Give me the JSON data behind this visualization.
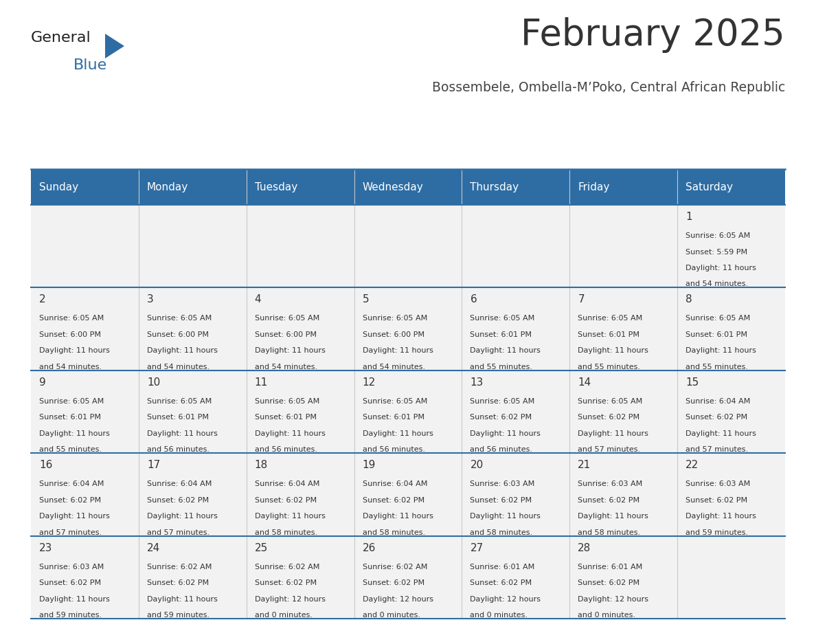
{
  "title": "February 2025",
  "subtitle": "Bossembele, Ombella-M’Poko, Central African Republic",
  "days_of_week": [
    "Sunday",
    "Monday",
    "Tuesday",
    "Wednesday",
    "Thursday",
    "Friday",
    "Saturday"
  ],
  "header_bg": "#2E6DA4",
  "header_text": "#FFFFFF",
  "cell_bg": "#F2F2F2",
  "line_color": "#2E6DA4",
  "title_color": "#333333",
  "subtitle_color": "#444444",
  "text_color": "#333333",
  "calendar_data": [
    [
      null,
      null,
      null,
      null,
      null,
      null,
      {
        "day": "1",
        "sunrise": "6:05 AM",
        "sunset": "5:59 PM",
        "daylight1": "Daylight: 11 hours",
        "daylight2": "and 54 minutes."
      }
    ],
    [
      {
        "day": "2",
        "sunrise": "6:05 AM",
        "sunset": "6:00 PM",
        "daylight1": "Daylight: 11 hours",
        "daylight2": "and 54 minutes."
      },
      {
        "day": "3",
        "sunrise": "6:05 AM",
        "sunset": "6:00 PM",
        "daylight1": "Daylight: 11 hours",
        "daylight2": "and 54 minutes."
      },
      {
        "day": "4",
        "sunrise": "6:05 AM",
        "sunset": "6:00 PM",
        "daylight1": "Daylight: 11 hours",
        "daylight2": "and 54 minutes."
      },
      {
        "day": "5",
        "sunrise": "6:05 AM",
        "sunset": "6:00 PM",
        "daylight1": "Daylight: 11 hours",
        "daylight2": "and 54 minutes."
      },
      {
        "day": "6",
        "sunrise": "6:05 AM",
        "sunset": "6:01 PM",
        "daylight1": "Daylight: 11 hours",
        "daylight2": "and 55 minutes."
      },
      {
        "day": "7",
        "sunrise": "6:05 AM",
        "sunset": "6:01 PM",
        "daylight1": "Daylight: 11 hours",
        "daylight2": "and 55 minutes."
      },
      {
        "day": "8",
        "sunrise": "6:05 AM",
        "sunset": "6:01 PM",
        "daylight1": "Daylight: 11 hours",
        "daylight2": "and 55 minutes."
      }
    ],
    [
      {
        "day": "9",
        "sunrise": "6:05 AM",
        "sunset": "6:01 PM",
        "daylight1": "Daylight: 11 hours",
        "daylight2": "and 55 minutes."
      },
      {
        "day": "10",
        "sunrise": "6:05 AM",
        "sunset": "6:01 PM",
        "daylight1": "Daylight: 11 hours",
        "daylight2": "and 56 minutes."
      },
      {
        "day": "11",
        "sunrise": "6:05 AM",
        "sunset": "6:01 PM",
        "daylight1": "Daylight: 11 hours",
        "daylight2": "and 56 minutes."
      },
      {
        "day": "12",
        "sunrise": "6:05 AM",
        "sunset": "6:01 PM",
        "daylight1": "Daylight: 11 hours",
        "daylight2": "and 56 minutes."
      },
      {
        "day": "13",
        "sunrise": "6:05 AM",
        "sunset": "6:02 PM",
        "daylight1": "Daylight: 11 hours",
        "daylight2": "and 56 minutes."
      },
      {
        "day": "14",
        "sunrise": "6:05 AM",
        "sunset": "6:02 PM",
        "daylight1": "Daylight: 11 hours",
        "daylight2": "and 57 minutes."
      },
      {
        "day": "15",
        "sunrise": "6:04 AM",
        "sunset": "6:02 PM",
        "daylight1": "Daylight: 11 hours",
        "daylight2": "and 57 minutes."
      }
    ],
    [
      {
        "day": "16",
        "sunrise": "6:04 AM",
        "sunset": "6:02 PM",
        "daylight1": "Daylight: 11 hours",
        "daylight2": "and 57 minutes."
      },
      {
        "day": "17",
        "sunrise": "6:04 AM",
        "sunset": "6:02 PM",
        "daylight1": "Daylight: 11 hours",
        "daylight2": "and 57 minutes."
      },
      {
        "day": "18",
        "sunrise": "6:04 AM",
        "sunset": "6:02 PM",
        "daylight1": "Daylight: 11 hours",
        "daylight2": "and 58 minutes."
      },
      {
        "day": "19",
        "sunrise": "6:04 AM",
        "sunset": "6:02 PM",
        "daylight1": "Daylight: 11 hours",
        "daylight2": "and 58 minutes."
      },
      {
        "day": "20",
        "sunrise": "6:03 AM",
        "sunset": "6:02 PM",
        "daylight1": "Daylight: 11 hours",
        "daylight2": "and 58 minutes."
      },
      {
        "day": "21",
        "sunrise": "6:03 AM",
        "sunset": "6:02 PM",
        "daylight1": "Daylight: 11 hours",
        "daylight2": "and 58 minutes."
      },
      {
        "day": "22",
        "sunrise": "6:03 AM",
        "sunset": "6:02 PM",
        "daylight1": "Daylight: 11 hours",
        "daylight2": "and 59 minutes."
      }
    ],
    [
      {
        "day": "23",
        "sunrise": "6:03 AM",
        "sunset": "6:02 PM",
        "daylight1": "Daylight: 11 hours",
        "daylight2": "and 59 minutes."
      },
      {
        "day": "24",
        "sunrise": "6:02 AM",
        "sunset": "6:02 PM",
        "daylight1": "Daylight: 11 hours",
        "daylight2": "and 59 minutes."
      },
      {
        "day": "25",
        "sunrise": "6:02 AM",
        "sunset": "6:02 PM",
        "daylight1": "Daylight: 12 hours",
        "daylight2": "and 0 minutes."
      },
      {
        "day": "26",
        "sunrise": "6:02 AM",
        "sunset": "6:02 PM",
        "daylight1": "Daylight: 12 hours",
        "daylight2": "and 0 minutes."
      },
      {
        "day": "27",
        "sunrise": "6:01 AM",
        "sunset": "6:02 PM",
        "daylight1": "Daylight: 12 hours",
        "daylight2": "and 0 minutes."
      },
      {
        "day": "28",
        "sunrise": "6:01 AM",
        "sunset": "6:02 PM",
        "daylight1": "Daylight: 12 hours",
        "daylight2": "and 0 minutes."
      },
      null
    ]
  ],
  "figsize": [
    11.88,
    9.18
  ],
  "dpi": 100
}
